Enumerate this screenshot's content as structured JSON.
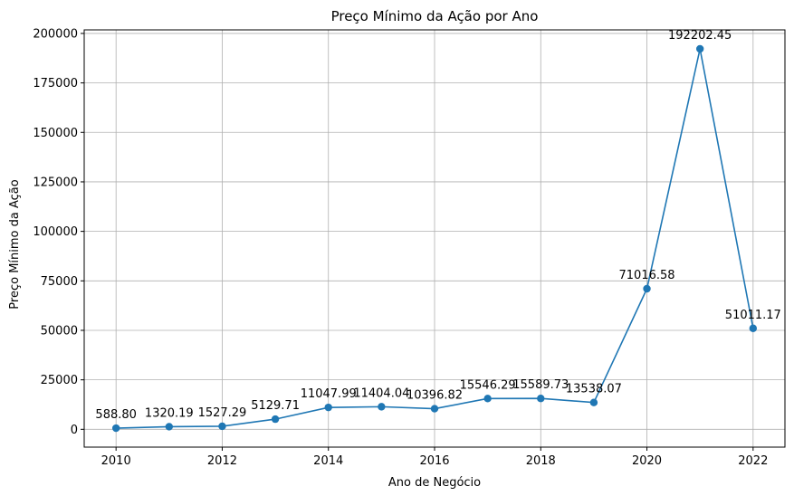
{
  "chart_data": {
    "type": "line",
    "title": "Preço Mínimo da Ação por Ano",
    "xlabel": "Ano de Negócio",
    "ylabel": "Preço Mínimo da Ação",
    "x": [
      2010,
      2011,
      2012,
      2013,
      2014,
      2015,
      2016,
      2017,
      2018,
      2019,
      2020,
      2021,
      2022
    ],
    "series": [
      {
        "values": [
          588.8,
          1320.19,
          1527.29,
          5129.71,
          11047.99,
          11404.04,
          10396.82,
          15546.29,
          15589.73,
          13538.07,
          71016.58,
          192202.45,
          51011.17
        ],
        "labels": [
          "588.80",
          "1320.19",
          "1527.29",
          "5129.71",
          "11047.99",
          "11404.04",
          "10396.82",
          "15546.29",
          "15589.73",
          "13538.07",
          "71016.58",
          "192202.45",
          "51011.17"
        ],
        "color": "#1f77b4",
        "marker": "circle"
      }
    ],
    "xlim": [
      2009.4,
      2022.6
    ],
    "ylim": [
      -9000,
      201800
    ],
    "xticks": [
      2010,
      2012,
      2014,
      2016,
      2018,
      2020,
      2022
    ],
    "xtick_labels": [
      "2010",
      "2012",
      "2014",
      "2016",
      "2018",
      "2020",
      "2022"
    ],
    "yticks": [
      0,
      25000,
      50000,
      75000,
      100000,
      125000,
      150000,
      175000,
      200000
    ],
    "ytick_labels": [
      "0",
      "25000",
      "50000",
      "75000",
      "100000",
      "125000",
      "150000",
      "175000",
      "200000"
    ],
    "grid": true
  }
}
